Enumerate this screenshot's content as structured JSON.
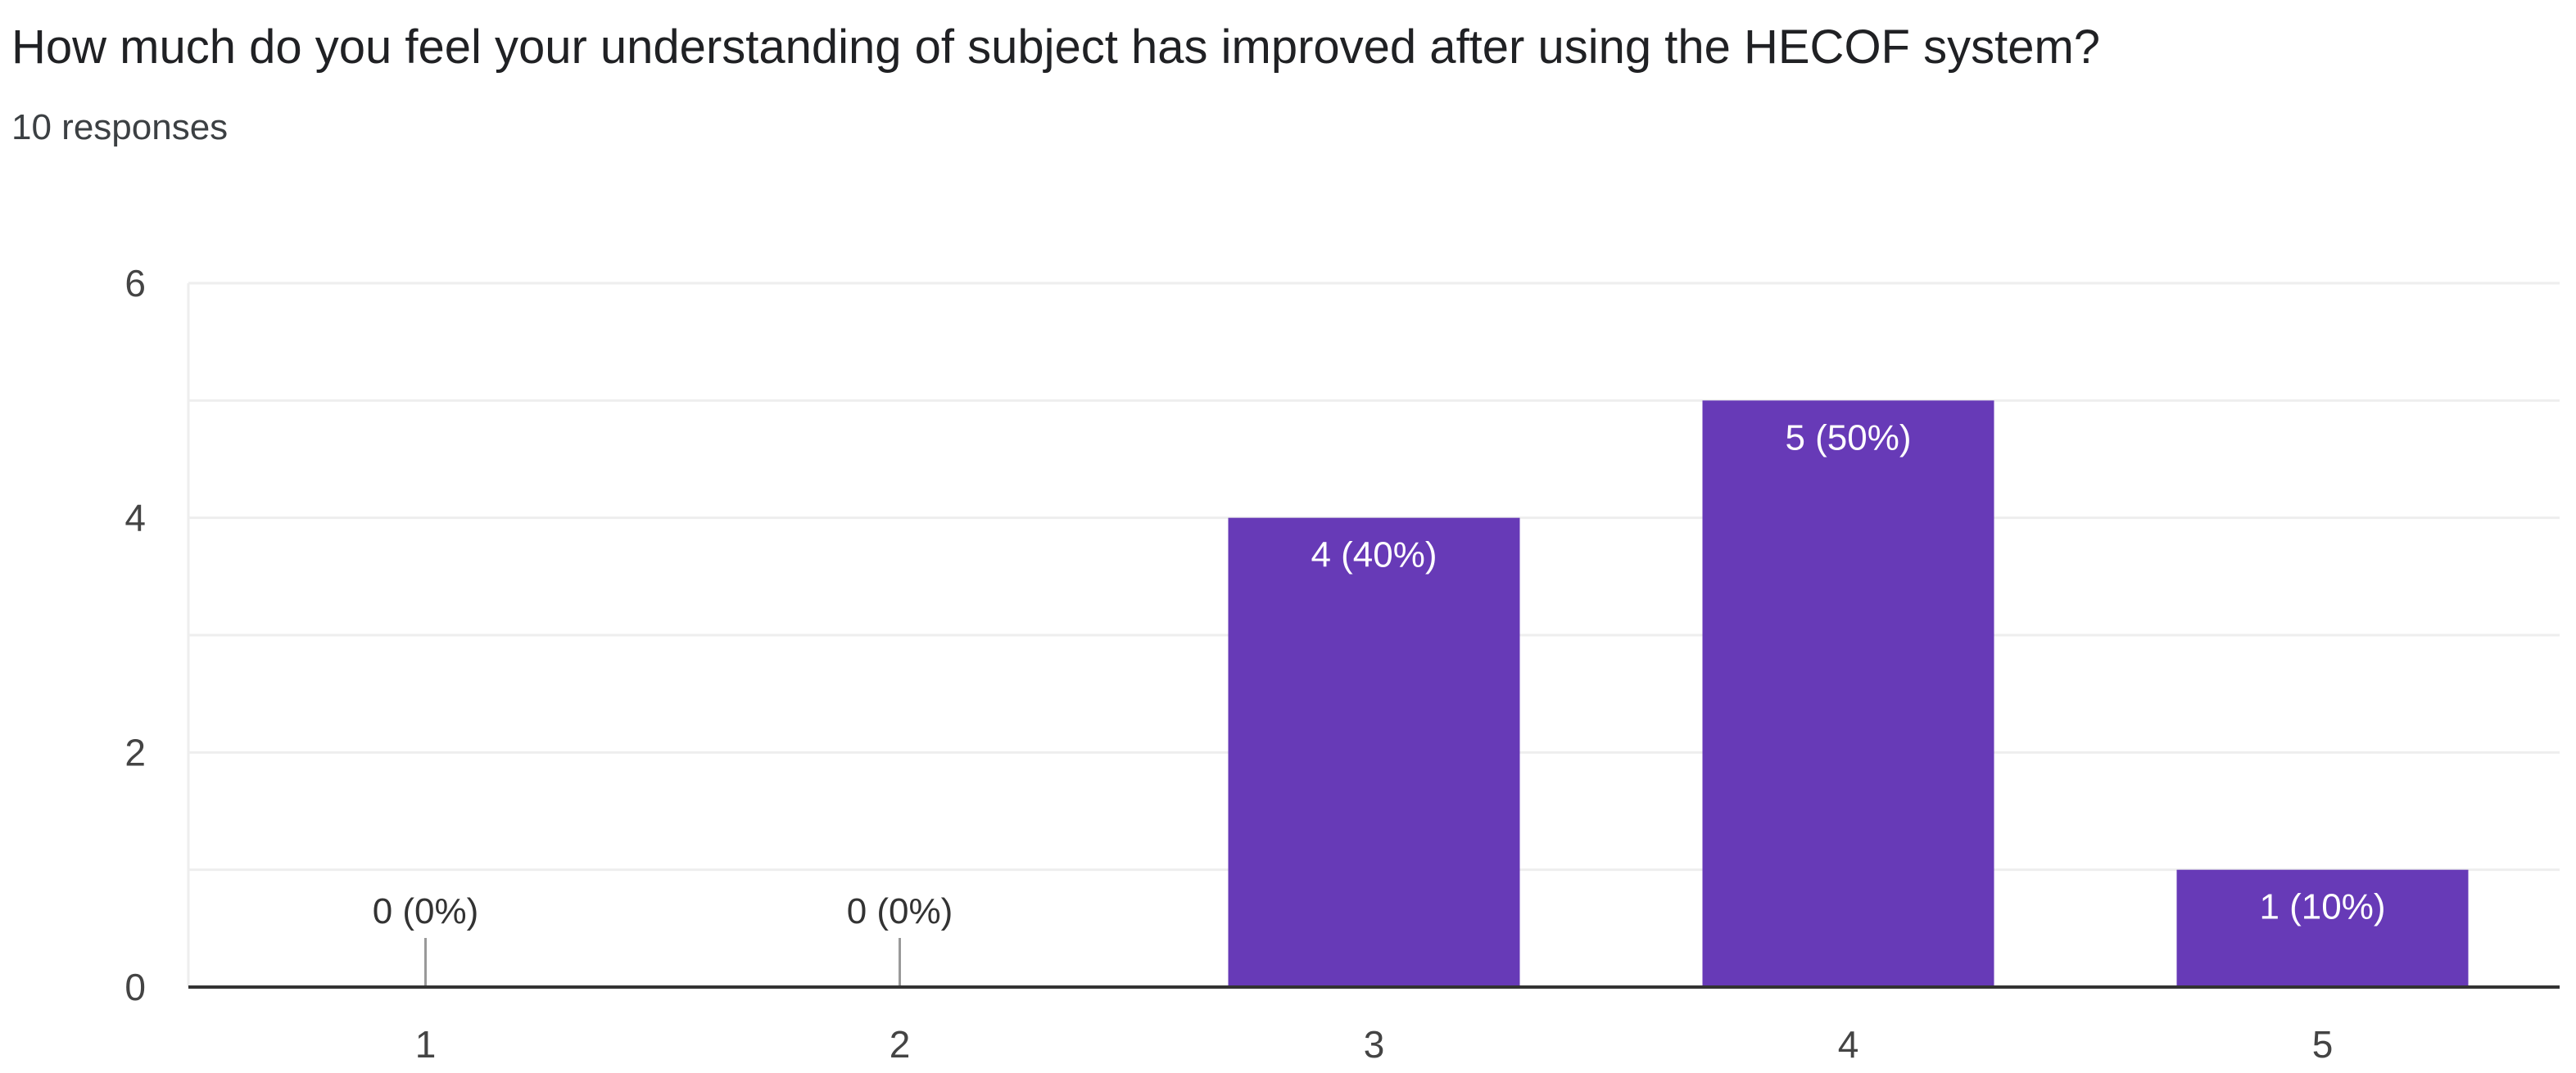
{
  "question": {
    "title": "How much do you feel your understanding of subject has improved after using the HECOF system?",
    "responses": "10 responses"
  },
  "colors": {
    "bar": "#673ab7",
    "grid": "#eeeeee",
    "axis": "#333333",
    "tick_text": "#444444",
    "label_on_bar": "#ffffff",
    "label_above": "#333333"
  },
  "chart_data": {
    "type": "bar",
    "title": "How much do you feel your understanding of subject has improved after using the HECOF system?",
    "xlabel": "",
    "ylabel": "",
    "categories": [
      "1",
      "2",
      "3",
      "4",
      "5"
    ],
    "values": [
      0,
      0,
      4,
      5,
      1
    ],
    "data_labels": [
      "0 (0%)",
      "0 (0%)",
      "4 (40%)",
      "5 (50%)",
      "1 (10%)"
    ],
    "ylim": [
      0,
      6
    ],
    "yticks": [
      0,
      2,
      4,
      6
    ],
    "grid": true,
    "legend": "none"
  }
}
